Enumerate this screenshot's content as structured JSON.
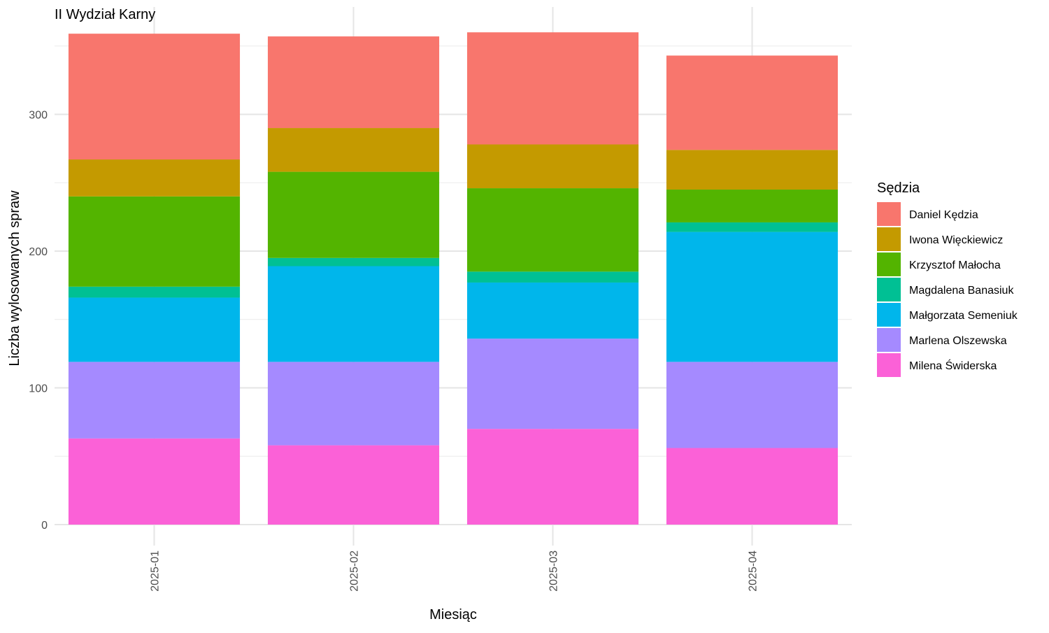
{
  "chart_data": {
    "type": "bar",
    "stacked": true,
    "title": "II Wydział Karny",
    "xlabel": "Miesiąc",
    "ylabel": "Liczba wylosowanych spraw",
    "categories": [
      "2025-01",
      "2025-02",
      "2025-03",
      "2025-04"
    ],
    "ylim": [
      0,
      370
    ],
    "yticks": [
      0,
      100,
      200,
      300
    ],
    "grid": true,
    "legend": {
      "title": "Sędzia",
      "position": "right"
    },
    "series": [
      {
        "name": "Milena Świderska",
        "color": "#FB61D7",
        "values": [
          63,
          58,
          70,
          56
        ]
      },
      {
        "name": "Marlena Olszewska",
        "color": "#A58AFF",
        "values": [
          56,
          61,
          66,
          63
        ]
      },
      {
        "name": "Małgorzata Semeniuk",
        "color": "#00B6EB",
        "values": [
          47,
          70,
          41,
          95
        ]
      },
      {
        "name": "Magdalena Banasiuk",
        "color": "#00C094",
        "values": [
          8,
          6,
          8,
          7
        ]
      },
      {
        "name": "Krzysztof Małocha",
        "color": "#53B400",
        "values": [
          66,
          63,
          61,
          24
        ]
      },
      {
        "name": "Iwona Więckiewicz",
        "color": "#C49A00",
        "values": [
          27,
          32,
          32,
          29
        ]
      },
      {
        "name": "Daniel Kędzia",
        "color": "#F8766D",
        "values": [
          92,
          67,
          82,
          69
        ]
      }
    ],
    "legend_order": [
      "Daniel Kędzia",
      "Iwona Więckiewicz",
      "Krzysztof Małocha",
      "Magdalena Banasiuk",
      "Małgorzata Semeniuk",
      "Marlena Olszewska",
      "Milena Świderska"
    ]
  }
}
